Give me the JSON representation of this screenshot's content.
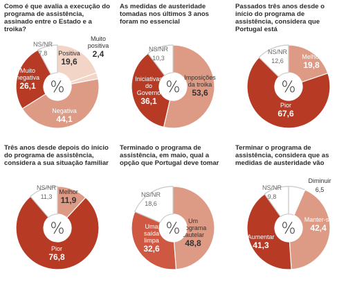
{
  "colors": {
    "dark": "#b63a24",
    "mid": "#cf5843",
    "light": "#dd9a84",
    "pale": "#f3d5c8",
    "nsnr": "#ffffff",
    "outline": "#c8c8c8"
  },
  "center_symbol": "%",
  "chart_data": [
    {
      "type": "pie",
      "title": "Como é que avalia a execução do programa de assistência, assinado entre o Estado e a troika?",
      "slices": [
        {
          "label": "Positiva",
          "value": 19.6,
          "display": "19,6",
          "color": "pale"
        },
        {
          "label": "Muito positiva",
          "value": 2.4,
          "display": "2,4",
          "color": "pale"
        },
        {
          "label": "Negativa",
          "value": 44.1,
          "display": "44,1",
          "color": "light"
        },
        {
          "label": "Muito negativa",
          "value": 26.1,
          "display": "26,1",
          "color": "dark"
        },
        {
          "label": "NS/NR",
          "value": 7.8,
          "display": "7,8",
          "color": "nsnr"
        }
      ]
    },
    {
      "type": "pie",
      "title": "As medidas de austeridade tomadas nos últimos 3 anos foram no essencial",
      "slices": [
        {
          "label": "Imposições da troika",
          "value": 53.6,
          "display": "53,6",
          "color": "light"
        },
        {
          "label": "Iniciativas do Governo",
          "value": 36.1,
          "display": "36,1",
          "color": "dark"
        },
        {
          "label": "NS/NR",
          "value": 10.3,
          "display": "10,3",
          "color": "nsnr"
        }
      ]
    },
    {
      "type": "pie",
      "title": "Passados três anos desde o início do programa de assistência, considera que Portugal está",
      "slices": [
        {
          "label": "Melhor",
          "value": 19.8,
          "display": "19,8",
          "color": "light"
        },
        {
          "label": "Pior",
          "value": 67.6,
          "display": "67,6",
          "color": "dark"
        },
        {
          "label": "NS/NR",
          "value": 12.6,
          "display": "12,6",
          "color": "nsnr"
        }
      ]
    },
    {
      "type": "pie",
      "title": "Três anos desde depois do início do programa de assistência, considera a sua situação familiar",
      "slices": [
        {
          "label": "Melhor",
          "value": 11.9,
          "display": "11,9",
          "color": "light"
        },
        {
          "label": "Pior",
          "value": 76.8,
          "display": "76,8",
          "color": "dark"
        },
        {
          "label": "NS/NR",
          "value": 11.3,
          "display": "11,3",
          "color": "nsnr"
        }
      ]
    },
    {
      "type": "pie",
      "title": "Terminado o programa de assistência, em maio, qual a opção que Portugal deve tomar",
      "slices": [
        {
          "label": "Um programa cautelar",
          "value": 48.8,
          "display": "48,8",
          "color": "light"
        },
        {
          "label": "Uma saída limpa",
          "value": 32.6,
          "display": "32,6",
          "color": "mid"
        },
        {
          "label": "NS/NR",
          "value": 18.6,
          "display": "18,6",
          "color": "nsnr"
        }
      ]
    },
    {
      "type": "pie",
      "title": "Terminar o programa de assistência, considera que as medidas de austeridade vão",
      "slices": [
        {
          "label": "Diminuir",
          "value": 6.5,
          "display": "6,5",
          "color": "nsnr"
        },
        {
          "label": "Manter-se",
          "value": 42.4,
          "display": "42,4",
          "color": "light"
        },
        {
          "label": "Aumentar",
          "value": 41.3,
          "display": "41,3",
          "color": "dark"
        },
        {
          "label": "NS/NR",
          "value": 9.8,
          "display": "9,8",
          "color": "nsnr"
        }
      ]
    }
  ]
}
